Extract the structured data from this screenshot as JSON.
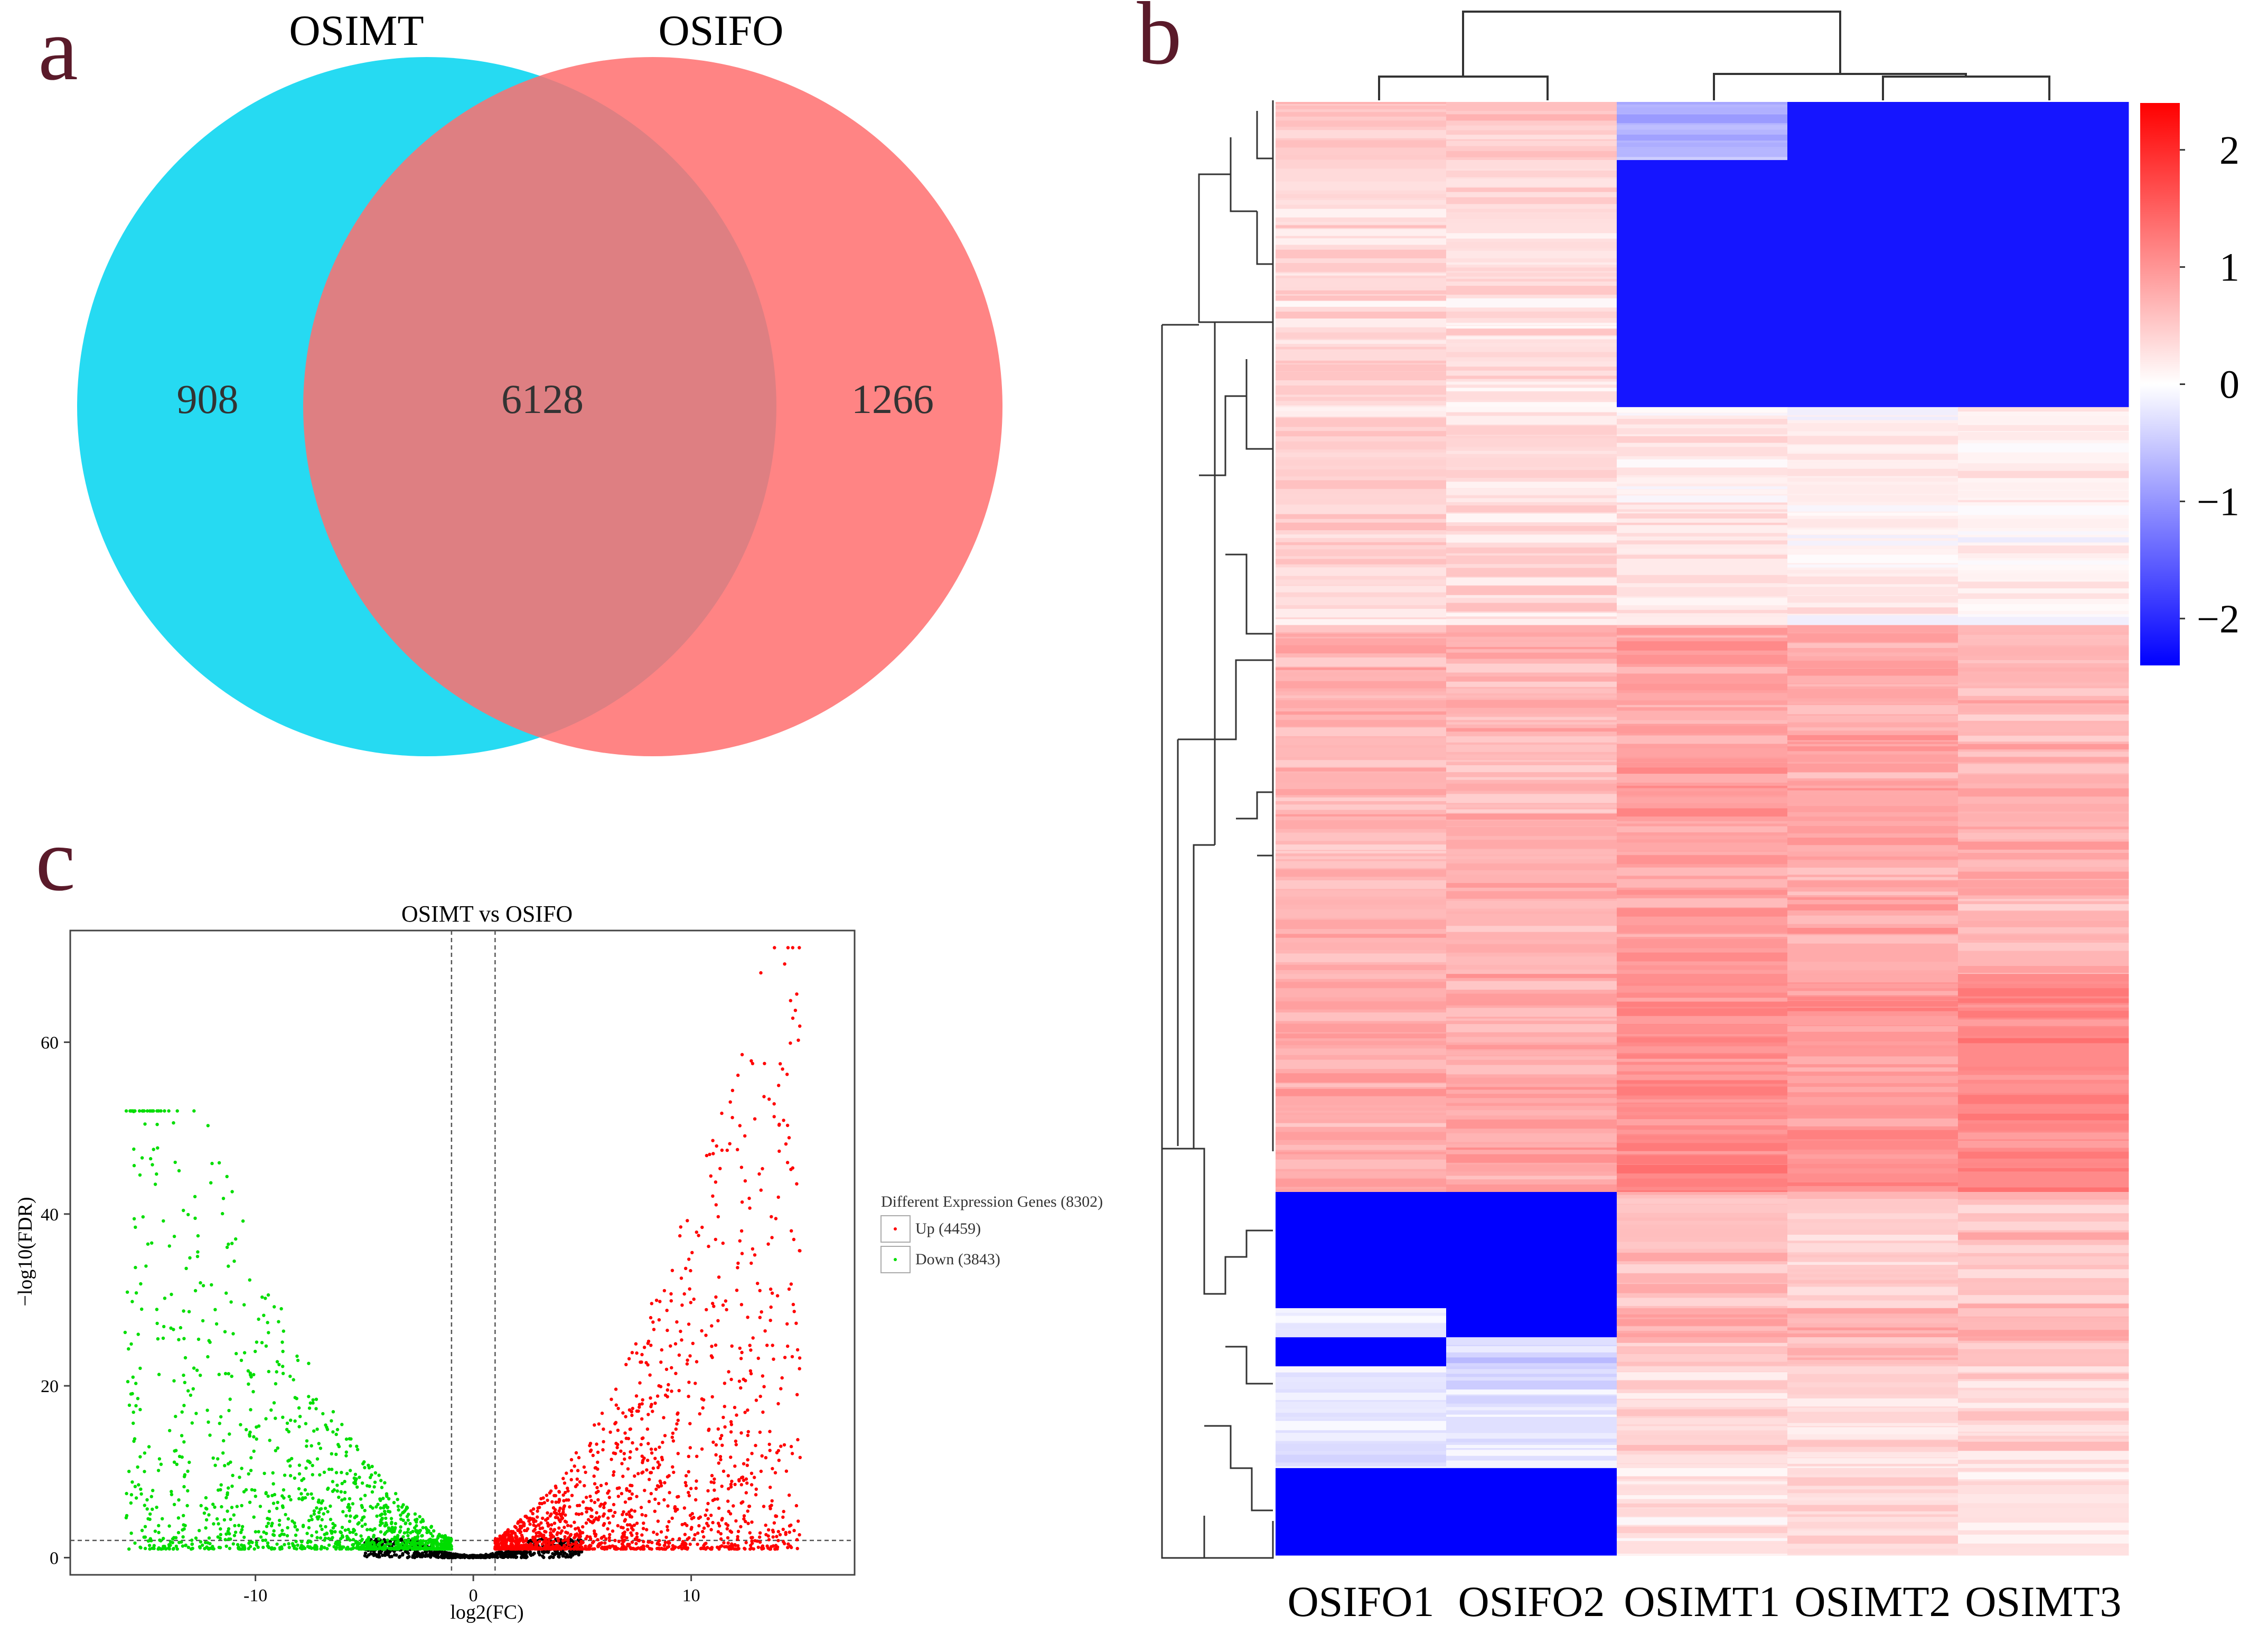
{
  "panel_labels": {
    "a": "a",
    "b": "b",
    "c": "c"
  },
  "colors": {
    "label": "#5a1a2a",
    "cyan": "#00d4f0",
    "coral": "#ff6e6e",
    "overlap": "#d36477",
    "up": "#ff0000",
    "down": "#00dd00",
    "ns": "#000000",
    "heat_low": "#0000ff",
    "heat_mid": "#ffffff",
    "heat_high": "#ff0000"
  },
  "chart_data": [
    {
      "type": "venn",
      "sets": [
        {
          "name": "OSIMT",
          "unique": 908
        },
        {
          "name": "OSIFO",
          "unique": 1266
        }
      ],
      "intersection": 6128,
      "labels": {
        "set_a": "OSIMT",
        "set_b": "OSIFO",
        "only_a": "908",
        "both": "6128",
        "only_b": "1266"
      }
    },
    {
      "type": "heatmap",
      "columns": [
        "OSIFO1",
        "OSIFO2",
        "OSIMT1",
        "OSIMT2",
        "OSIMT3"
      ],
      "color_scale": {
        "min": -2.4,
        "max": 2.4,
        "ticks": [
          2,
          1,
          0,
          -1,
          -2
        ],
        "tick_labels": [
          "2",
          "1",
          "0",
          "−1",
          "−2"
        ]
      },
      "blocks": [
        {
          "rows": [
            0,
            0.04
          ],
          "values": [
            0.5,
            0.5,
            -0.7,
            -2.2,
            -2.2
          ]
        },
        {
          "rows": [
            0.04,
            0.21
          ],
          "values": [
            0.35,
            0.3,
            -2.2,
            -2.2,
            -2.2
          ]
        },
        {
          "rows": [
            0.21,
            0.36
          ],
          "values": [
            0.4,
            0.35,
            0.2,
            0.15,
            0.1
          ]
        },
        {
          "rows": [
            0.36,
            0.6
          ],
          "values": [
            0.7,
            0.7,
            0.9,
            0.8,
            0.7
          ]
        },
        {
          "rows": [
            0.6,
            0.75
          ],
          "values": [
            0.8,
            0.8,
            1.1,
            1.0,
            1.1
          ]
        },
        {
          "rows": [
            0.75,
            0.83
          ],
          "values": [
            -2.4,
            -2.4,
            0.6,
            0.5,
            0.6
          ]
        },
        {
          "rows": [
            0.83,
            0.85
          ],
          "values": [
            -0.2,
            -2.4,
            0.8,
            0.7,
            0.8
          ]
        },
        {
          "rows": [
            0.85,
            0.87
          ],
          "values": [
            -2.4,
            -0.4,
            0.6,
            0.6,
            0.6
          ]
        },
        {
          "rows": [
            0.87,
            0.94
          ],
          "values": [
            -0.3,
            -0.3,
            0.4,
            0.4,
            0.4
          ]
        },
        {
          "rows": [
            0.94,
            1.0
          ],
          "values": [
            -2.4,
            -2.4,
            0.3,
            0.3,
            0.3
          ]
        }
      ]
    },
    {
      "type": "scatter",
      "title": "OSIMT vs OSIFO",
      "xlabel": "log2(FC)",
      "ylabel": "−log10(FDR)",
      "xlim": [
        -18.5,
        17.5
      ],
      "ylim": [
        -2,
        73
      ],
      "xticks": [
        -10,
        0,
        10
      ],
      "yticks": [
        0,
        20,
        40,
        60
      ],
      "thresholds": {
        "fc": [
          -1,
          1
        ],
        "fdr": 2
      },
      "legend": {
        "title": "Different Expression Genes (8302)",
        "items": [
          {
            "label": "Up (4459)",
            "color": "#ff0000"
          },
          {
            "label": "Down (3843)",
            "color": "#00dd00"
          }
        ],
        "position": "right"
      },
      "series": [
        {
          "name": "Up",
          "count": 4459,
          "color": "#ff0000"
        },
        {
          "name": "Down",
          "count": 3843,
          "color": "#00dd00"
        },
        {
          "name": "Not significant",
          "color": "#000000"
        }
      ]
    }
  ]
}
